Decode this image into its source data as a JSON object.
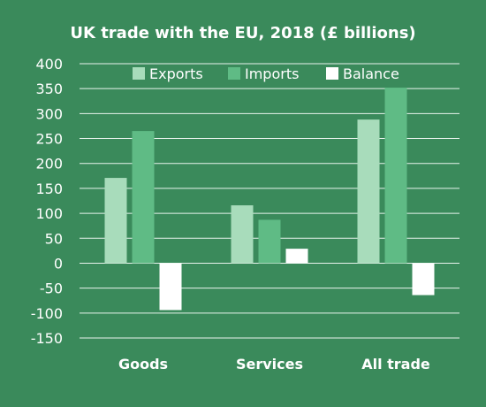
{
  "chart_data": {
    "type": "bar",
    "title": "UK trade with the EU, 2018 (£ billions)",
    "categories": [
      "Goods",
      "Services",
      "All trade"
    ],
    "series": [
      {
        "name": "Exports",
        "values": [
          171,
          116,
          288
        ],
        "color": "#a8dcbb"
      },
      {
        "name": "Imports",
        "values": [
          265,
          87,
          352
        ],
        "color": "#5fbb85"
      },
      {
        "name": "Balance",
        "values": [
          -94,
          29,
          -64
        ],
        "color": "#ffffff"
      }
    ],
    "ylim": [
      -150,
      400
    ],
    "yticks": [
      "-150",
      "-100",
      "-50",
      "0",
      "50",
      "100",
      "150",
      "200",
      "250",
      "300",
      "350",
      "400"
    ],
    "xlabel": "",
    "ylabel": "",
    "grid": true,
    "legend": "top-center"
  },
  "colors": {
    "background": "#3a8a5b",
    "gridline": "#e8f3ec",
    "text": "#ffffff"
  }
}
